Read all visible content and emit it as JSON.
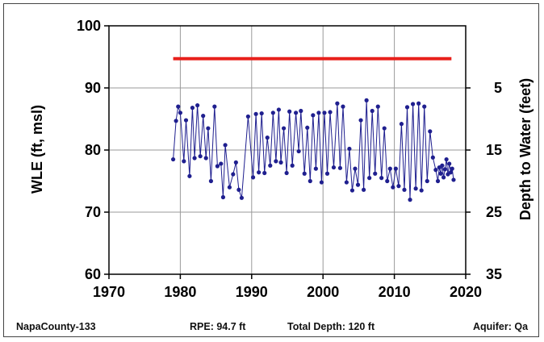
{
  "chart_data": {
    "type": "line",
    "title": "",
    "xlabel": "",
    "ylabel": "WLE (ft, msl)",
    "y2label": "Depth to Water (feet)",
    "xlim": [
      1970,
      2020
    ],
    "ylim": [
      60,
      100
    ],
    "x_ticks": [
      1970,
      1980,
      1990,
      2000,
      2010,
      2020
    ],
    "y_ticks": [
      60,
      70,
      80,
      90,
      100
    ],
    "y2_ticks": [
      {
        "wle": 90,
        "label": "5"
      },
      {
        "wle": 80,
        "label": "15"
      },
      {
        "wle": 70,
        "label": "25"
      },
      {
        "wle": 60,
        "label": "35"
      }
    ],
    "grid": true,
    "colors": {
      "series": "#1f1f8f",
      "reference": "#e8201c"
    },
    "reference_line": {
      "y": 94.7,
      "x_start": 1979,
      "x_end": 2018
    },
    "series": [
      {
        "x": [
          1979.0,
          1979.4,
          1979.7,
          1980.0,
          1980.5,
          1980.8,
          1981.3,
          1981.7,
          1982.0,
          1982.4,
          1982.8,
          1983.2,
          1983.6,
          1983.9,
          1984.3,
          1984.8,
          1985.2,
          1985.7,
          1986.0,
          1986.3,
          1986.9,
          1987.4,
          1987.8,
          1988.2,
          1988.6,
          1989.5,
          1990.2,
          1990.6,
          1991.0,
          1991.4,
          1991.8,
          1992.2,
          1992.6,
          1993.0,
          1993.4,
          1993.8,
          1994.1,
          1994.5,
          1994.9,
          1995.3,
          1995.7,
          1996.2,
          1996.6,
          1996.9,
          1997.4,
          1997.8,
          1998.2,
          1998.6,
          1999.0,
          1999.4,
          1999.8,
          2000.2,
          2000.6,
          2001.0,
          2001.5,
          2002.0,
          2002.4,
          2002.8,
          2003.3,
          2003.7,
          2004.1,
          2004.5,
          2004.9,
          2005.3,
          2005.7,
          2006.1,
          2006.5,
          2006.9,
          2007.3,
          2007.7,
          2008.2,
          2008.6,
          2009.0,
          2009.4,
          2009.8,
          2010.2,
          2010.6,
          2011.0,
          2011.4,
          2011.8,
          2012.2,
          2012.6,
          2013.0,
          2013.4,
          2013.8,
          2014.2,
          2014.6,
          2015.0,
          2015.4,
          2015.8,
          2016.1,
          2016.3,
          2016.5,
          2016.7,
          2016.9,
          2017.1,
          2017.3,
          2017.5,
          2017.7,
          2017.9,
          2018.1,
          2018.3
        ],
        "y": [
          78.5,
          84.7,
          87.0,
          86.0,
          78.2,
          84.8,
          75.8,
          86.8,
          78.7,
          87.2,
          79.0,
          85.5,
          78.7,
          83.5,
          75.0,
          87.0,
          77.4,
          77.8,
          72.4,
          80.8,
          74.0,
          76.1,
          78.0,
          73.6,
          72.3,
          85.4,
          75.6,
          85.8,
          76.4,
          85.9,
          76.3,
          82.0,
          77.5,
          86.0,
          78.2,
          86.5,
          78.0,
          83.5,
          76.3,
          86.2,
          77.5,
          86.0,
          79.8,
          86.3,
          76.2,
          83.6,
          75.0,
          85.6,
          77.0,
          86.0,
          74.8,
          86.0,
          76.2,
          86.1,
          77.2,
          87.5,
          77.1,
          87.0,
          74.8,
          80.2,
          73.5,
          77.0,
          74.4,
          84.8,
          73.6,
          88.0,
          75.5,
          86.3,
          76.2,
          87.0,
          75.5,
          83.5,
          75.0,
          77.0,
          74.0,
          77.0,
          74.2,
          84.2,
          73.6,
          86.9,
          72.0,
          87.4,
          73.8,
          87.5,
          73.5,
          87.0,
          75.0,
          83.0,
          78.8,
          76.8,
          75.0,
          77.2,
          76.2,
          77.5,
          75.6,
          76.9,
          78.5,
          76.1,
          77.8,
          76.4,
          77.0,
          75.2
        ]
      }
    ]
  },
  "footer": {
    "well": "NapaCounty-133",
    "rpe": "RPE: 94.7 ft",
    "depth": "Total Depth: 120 ft",
    "aquifer": "Aquifer: Qa"
  }
}
